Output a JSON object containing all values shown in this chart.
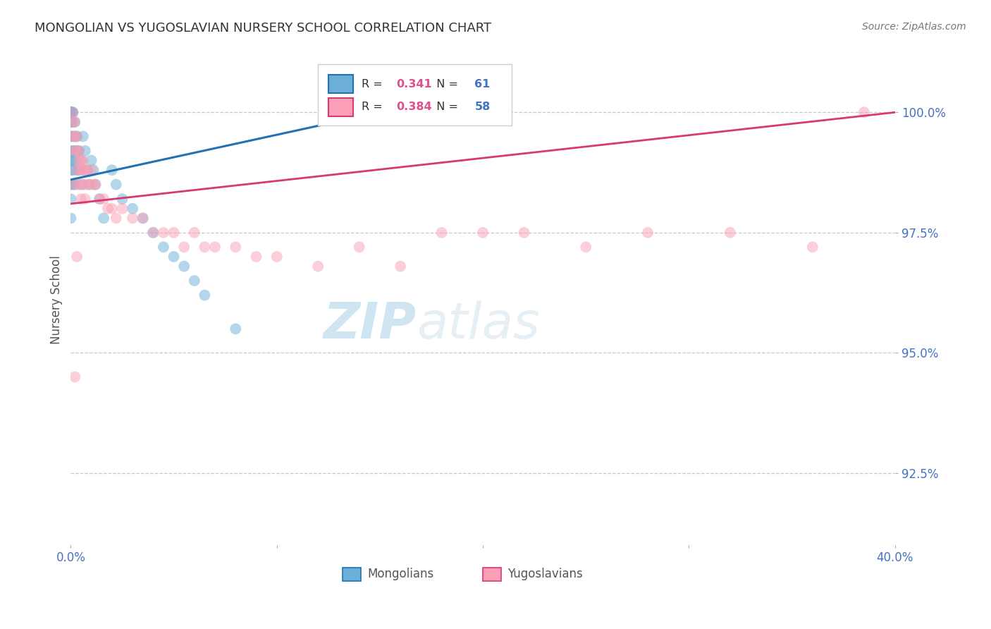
{
  "title": "MONGOLIAN VS YUGOSLAVIAN NURSERY SCHOOL CORRELATION CHART",
  "source": "Source: ZipAtlas.com",
  "xlabel_mongolians": "Mongolians",
  "xlabel_yugoslavians": "Yugoslavians",
  "ylabel": "Nursery School",
  "xlim": [
    0.0,
    40.0
  ],
  "ylim": [
    91.0,
    101.2
  ],
  "xticks": [
    0.0,
    10.0,
    20.0,
    30.0,
    40.0
  ],
  "yticks": [
    92.5,
    95.0,
    97.5,
    100.0
  ],
  "ytick_labels": [
    "92.5%",
    "95.0%",
    "97.5%",
    "100.0%"
  ],
  "xtick_labels": [
    "0.0%",
    "",
    "",
    "",
    "40.0%"
  ],
  "legend_r_mongolian": "0.341",
  "legend_n_mongolian": "61",
  "legend_r_yugoslavian": "0.384",
  "legend_n_yugoslavian": "58",
  "mongolian_color": "#6baed6",
  "yugoslavian_color": "#fa9fb5",
  "mongolian_line_color": "#2171b5",
  "yugoslavian_line_color": "#d63a6e",
  "background_color": "#ffffff",
  "mongolian_x": [
    0.0,
    0.0,
    0.0,
    0.0,
    0.0,
    0.0,
    0.0,
    0.0,
    0.0,
    0.0,
    0.0,
    0.0,
    0.0,
    0.0,
    0.0,
    0.0,
    0.0,
    0.0,
    0.0,
    0.0,
    0.1,
    0.1,
    0.1,
    0.1,
    0.1,
    0.1,
    0.1,
    0.1,
    0.2,
    0.2,
    0.2,
    0.2,
    0.2,
    0.3,
    0.3,
    0.3,
    0.4,
    0.4,
    0.5,
    0.5,
    0.6,
    0.7,
    0.8,
    0.9,
    1.0,
    1.1,
    1.2,
    1.4,
    1.6,
    2.0,
    2.2,
    2.5,
    3.0,
    3.5,
    4.0,
    4.5,
    5.0,
    5.5,
    6.0,
    6.5,
    8.0
  ],
  "mongolian_y": [
    100.0,
    100.0,
    100.0,
    100.0,
    100.0,
    100.0,
    100.0,
    100.0,
    100.0,
    100.0,
    99.8,
    99.8,
    99.5,
    99.5,
    99.2,
    99.0,
    98.8,
    98.5,
    98.2,
    97.8,
    100.0,
    100.0,
    99.8,
    99.5,
    99.2,
    99.0,
    98.8,
    98.5,
    99.8,
    99.5,
    99.2,
    99.0,
    98.5,
    99.5,
    99.2,
    98.8,
    99.2,
    98.8,
    99.0,
    98.5,
    99.5,
    99.2,
    98.8,
    98.5,
    99.0,
    98.8,
    98.5,
    98.2,
    97.8,
    98.8,
    98.5,
    98.2,
    98.0,
    97.8,
    97.5,
    97.2,
    97.0,
    96.8,
    96.5,
    96.2,
    95.5
  ],
  "yugoslavian_x": [
    0.1,
    0.1,
    0.1,
    0.2,
    0.2,
    0.2,
    0.3,
    0.3,
    0.4,
    0.4,
    0.5,
    0.5,
    0.6,
    0.6,
    0.7,
    0.7,
    0.8,
    0.9,
    1.0,
    1.1,
    1.2,
    1.4,
    1.6,
    1.8,
    2.0,
    2.2,
    2.5,
    3.0,
    3.5,
    4.0,
    4.5,
    5.0,
    5.5,
    6.0,
    6.5,
    7.0,
    8.0,
    9.0,
    10.0,
    12.0,
    14.0,
    16.0,
    18.0,
    20.0,
    22.0,
    25.0,
    28.0,
    32.0,
    36.0,
    38.5,
    0.2,
    0.3,
    0.4,
    0.2,
    0.3,
    0.5,
    0.7,
    0.6
  ],
  "yugoslavian_y": [
    100.0,
    99.8,
    99.5,
    99.8,
    99.5,
    99.2,
    99.5,
    99.2,
    99.2,
    99.0,
    99.0,
    98.8,
    99.0,
    98.8,
    98.8,
    98.5,
    98.8,
    98.5,
    98.8,
    98.5,
    98.5,
    98.2,
    98.2,
    98.0,
    98.0,
    97.8,
    98.0,
    97.8,
    97.8,
    97.5,
    97.5,
    97.5,
    97.2,
    97.5,
    97.2,
    97.2,
    97.2,
    97.0,
    97.0,
    96.8,
    97.2,
    96.8,
    97.5,
    97.5,
    97.5,
    97.2,
    97.5,
    97.5,
    97.2,
    100.0,
    98.5,
    98.8,
    98.5,
    94.5,
    97.0,
    98.2,
    98.2,
    98.5
  ],
  "mon_line_x": [
    0.0,
    15.0
  ],
  "mon_line_y": [
    98.6,
    100.0
  ],
  "yug_line_x": [
    0.0,
    40.0
  ],
  "yug_line_y": [
    98.1,
    100.0
  ]
}
